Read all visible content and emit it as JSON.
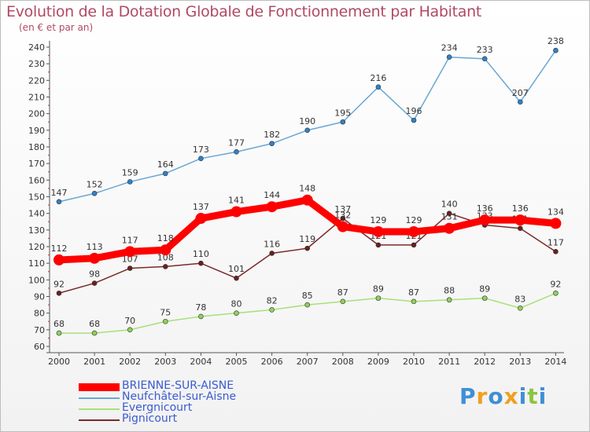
{
  "chart_data": {
    "type": "line",
    "title": "Evolution de la Dotation Globale de Fonctionnement par Habitant",
    "subtitle": "(en € et par an)",
    "x": [
      "2000",
      "2001",
      "2002",
      "2003",
      "2004",
      "2005",
      "2006",
      "2007",
      "2008",
      "2009",
      "2010",
      "2011",
      "2012",
      "2013",
      "2014"
    ],
    "ylim": [
      60,
      240
    ],
    "yticks": [
      60,
      70,
      80,
      90,
      100,
      110,
      120,
      130,
      140,
      150,
      160,
      170,
      180,
      190,
      200,
      210,
      220,
      230,
      240
    ],
    "grid": false,
    "legend_position": "bottom-left",
    "series": [
      {
        "name": "Neufchâtel-sur-Aisne",
        "color": "#6aa6d4",
        "marker": "#2f82c8",
        "values": [
          147,
          152,
          159,
          164,
          173,
          177,
          182,
          190,
          195,
          216,
          196,
          234,
          233,
          207,
          238
        ]
      },
      {
        "name": "Evergnicourt",
        "color": "#a8e07a",
        "marker": "#8fd15a",
        "values": [
          68,
          68,
          70,
          75,
          78,
          80,
          82,
          85,
          87,
          89,
          87,
          88,
          89,
          83,
          92
        ]
      },
      {
        "name": "Pignicourt",
        "color": "#7a2a2a",
        "marker": "#6a1f1f",
        "values": [
          92,
          98,
          107,
          108,
          110,
          101,
          116,
          119,
          137,
          121,
          121,
          140,
          133,
          131,
          117
        ]
      },
      {
        "name": "BRIENNE-SUR-AISNE",
        "color": "#ff0000",
        "marker": "#ff0000",
        "values": [
          112,
          113,
          117,
          118,
          137,
          141,
          144,
          148,
          132,
          129,
          129,
          131,
          136,
          136,
          134
        ]
      }
    ]
  },
  "legend": [
    {
      "label": "BRIENNE-SUR-AISNE",
      "color": "#ff0000",
      "thick": true
    },
    {
      "label": "Neufchâtel-sur-Aisne",
      "color": "#6aa6d4",
      "thick": false
    },
    {
      "label": "Evergnicourt",
      "color": "#a8e07a",
      "thick": false
    },
    {
      "label": "Pignicourt",
      "color": "#7a2a2a",
      "thick": false
    }
  ],
  "logo": {
    "letters": [
      "P",
      "r",
      "o",
      "x",
      "i",
      "t",
      "i"
    ],
    "colors": [
      "#3f8fd6",
      "#f0a020",
      "#3f8fd6",
      "#f0a020",
      "#3f8fd6",
      "#8cc63f",
      "#3f8fd6"
    ]
  }
}
